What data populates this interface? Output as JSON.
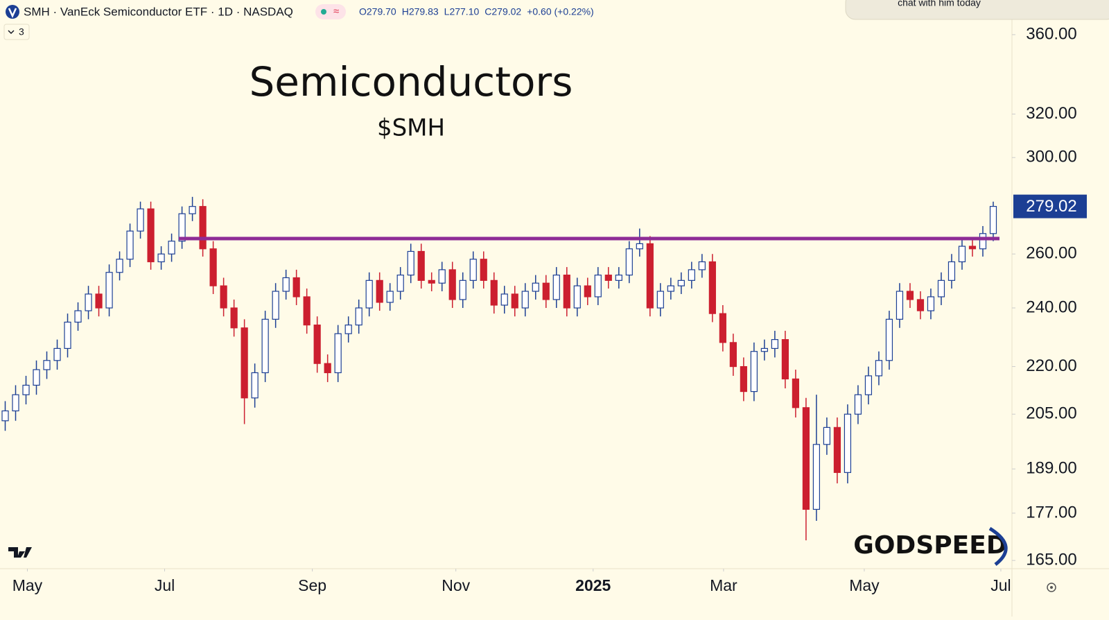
{
  "header": {
    "symbol": "SMH · VanEck Semiconductor ETF · 1D · NASDAQ",
    "ohlc": [
      "O279.70",
      "H279.83",
      "L277.10",
      "C279.02",
      "+0.60 (+0.22%)"
    ],
    "indicators": "3",
    "popup": "chat with him today"
  },
  "chart_data": {
    "type": "candlestick",
    "title": "Semiconductors",
    "subtitle": "$SMH",
    "watermark": "GODSPEED",
    "log_scale": true,
    "up_color": "#1c3f94",
    "down_color": "#cc1f2f",
    "open": [
      203,
      206,
      211,
      214,
      219,
      222,
      226,
      235,
      239,
      245,
      240,
      253,
      258,
      269,
      278,
      257,
      260,
      265,
      276,
      279,
      262,
      248,
      240,
      233,
      210,
      218,
      236,
      246,
      251,
      244,
      234,
      221,
      218,
      231,
      234,
      240,
      250,
      242,
      246,
      252,
      261,
      250,
      249,
      254,
      243,
      250,
      258,
      250,
      241,
      245,
      240,
      246,
      249,
      243,
      252,
      240,
      248,
      244,
      252,
      250,
      252,
      262,
      264,
      240,
      246,
      248,
      250,
      254,
      257,
      238,
      228,
      220,
      212,
      225,
      226,
      229,
      216,
      207,
      178,
      196,
      201,
      188,
      205,
      211,
      217,
      222,
      236,
      246,
      243,
      239,
      244,
      250,
      257,
      263,
      262,
      268
    ],
    "high": [
      209,
      214,
      217,
      222,
      225,
      229,
      238,
      242,
      248,
      248,
      256,
      261,
      272,
      281,
      281,
      263,
      268,
      279,
      283,
      282,
      265,
      251,
      243,
      236,
      221,
      239,
      249,
      254,
      254,
      247,
      237,
      224,
      234,
      237,
      243,
      253,
      253,
      249,
      255,
      264,
      264,
      253,
      257,
      257,
      253,
      261,
      261,
      253,
      248,
      248,
      249,
      252,
      252,
      255,
      255,
      251,
      251,
      255,
      255,
      255,
      265,
      270,
      267,
      249,
      251,
      253,
      257,
      260,
      260,
      241,
      231,
      223,
      228,
      229,
      232,
      232,
      219,
      210,
      211,
      204,
      204,
      208,
      214,
      220,
      225,
      239,
      249,
      249,
      246,
      247,
      253,
      260,
      266,
      266,
      271,
      281
    ],
    "low": [
      200,
      203,
      208,
      211,
      216,
      219,
      223,
      232,
      236,
      237,
      237,
      250,
      255,
      266,
      254,
      254,
      257,
      262,
      273,
      259,
      245,
      237,
      230,
      202,
      207,
      215,
      233,
      243,
      241,
      231,
      218,
      215,
      215,
      228,
      231,
      237,
      239,
      239,
      243,
      249,
      247,
      246,
      246,
      240,
      240,
      247,
      247,
      238,
      238,
      237,
      237,
      243,
      240,
      240,
      237,
      237,
      241,
      241,
      247,
      247,
      249,
      259,
      237,
      237,
      243,
      245,
      247,
      251,
      235,
      225,
      217,
      209,
      209,
      222,
      223,
      213,
      204,
      170,
      175,
      193,
      185,
      185,
      202,
      208,
      214,
      219,
      233,
      240,
      236,
      236,
      241,
      247,
      254,
      259,
      259,
      265
    ],
    "close": [
      206,
      211,
      214,
      219,
      222,
      226,
      235,
      239,
      245,
      240,
      253,
      258,
      269,
      278,
      257,
      260,
      265,
      276,
      279,
      262,
      248,
      240,
      233,
      210,
      218,
      236,
      246,
      251,
      244,
      234,
      221,
      218,
      231,
      234,
      240,
      250,
      242,
      246,
      252,
      261,
      250,
      249,
      254,
      243,
      250,
      258,
      250,
      241,
      245,
      240,
      246,
      249,
      243,
      252,
      240,
      248,
      244,
      252,
      250,
      252,
      262,
      264,
      240,
      246,
      248,
      250,
      254,
      257,
      238,
      228,
      220,
      212,
      225,
      226,
      229,
      216,
      207,
      178,
      196,
      201,
      188,
      205,
      211,
      217,
      222,
      236,
      246,
      243,
      239,
      244,
      250,
      257,
      263,
      262,
      268,
      279.02
    ],
    "resistance": {
      "value": 266,
      "color": "#8e2c96"
    },
    "xlim": [
      -0.5,
      96.8
    ],
    "xticks": [
      {
        "value": 2.13,
        "label": "May"
      },
      {
        "value": 15.33,
        "label": "Jul"
      },
      {
        "value": 29.53,
        "label": "Sep"
      },
      {
        "value": 43.33,
        "label": "Nov"
      },
      {
        "value": 56.53,
        "label": "2025"
      },
      {
        "value": 69.07,
        "label": "Mar"
      },
      {
        "value": 82.6,
        "label": "May"
      },
      {
        "value": 95.73,
        "label": "Jul"
      }
    ],
    "ylim": [
      163,
      379
    ],
    "yticks": [
      {
        "value": 165,
        "label": "165.00"
      },
      {
        "value": 177,
        "label": "177.00"
      },
      {
        "value": 189,
        "label": "189.00"
      },
      {
        "value": 205,
        "label": "205.00"
      },
      {
        "value": 220,
        "label": "220.00"
      },
      {
        "value": 240,
        "label": "240.00"
      },
      {
        "value": 260,
        "label": "260.00"
      },
      {
        "value": 300,
        "label": "300.00"
      },
      {
        "value": 320,
        "label": "320.00"
      },
      {
        "value": 360,
        "label": "360.00"
      }
    ]
  }
}
